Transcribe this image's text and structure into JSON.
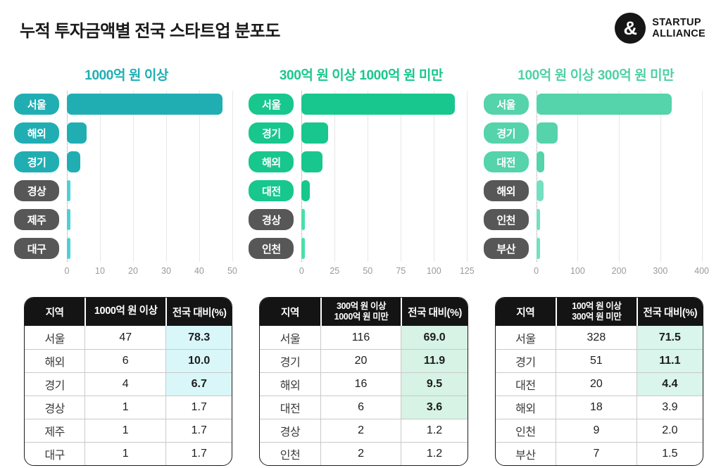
{
  "page": {
    "title": "누적 투자금액별 전국 스타트업 분포도"
  },
  "logo": {
    "symbol": "&",
    "line1": "STARTUP",
    "line2": "ALLIANCE"
  },
  "ui": {
    "gray_pill_color": "#575757",
    "gridline_color": "#e7e7e7",
    "tick_color": "#9a9a9a"
  },
  "chart_data": [
    {
      "type": "bar",
      "orientation": "horizontal",
      "title": "1000억 원 이상",
      "title_color": "#1cafb4",
      "bar_color": "#20aeb3",
      "bar_color_light": "#4fd0d4",
      "categories": [
        "서울",
        "해외",
        "경기",
        "경상",
        "제주",
        "대구"
      ],
      "values": [
        47,
        6,
        4,
        1,
        1,
        1
      ],
      "highlighted_categories": [
        "서울",
        "해외",
        "경기"
      ],
      "ticks": [
        0,
        10,
        20,
        30,
        40,
        50
      ],
      "xlim": [
        0,
        52
      ],
      "grid": true
    },
    {
      "type": "bar",
      "orientation": "horizontal",
      "title": "300억 원 이상 1000억 원 미만",
      "title_color": "#18c78d",
      "bar_color": "#18c78d",
      "bar_color_light": "#4adfa8",
      "categories": [
        "서울",
        "경기",
        "해외",
        "대전",
        "경상",
        "인천"
      ],
      "values": [
        116,
        20,
        16,
        6,
        2,
        2
      ],
      "highlighted_categories": [
        "서울",
        "경기",
        "해외",
        "대전"
      ],
      "ticks": [
        0,
        25,
        50,
        75,
        100,
        125
      ],
      "xlim": [
        0,
        130
      ],
      "grid": true
    },
    {
      "type": "bar",
      "orientation": "horizontal",
      "title": "100억 원 이상 300억 원 미만",
      "title_color": "#4fd0a6",
      "bar_color": "#55d3ab",
      "bar_color_light": "#74e0c0",
      "categories": [
        "서울",
        "경기",
        "대전",
        "해외",
        "인천",
        "부산"
      ],
      "values": [
        328,
        51,
        20,
        18,
        9,
        7
      ],
      "highlighted_categories": [
        "서울",
        "경기",
        "대전"
      ],
      "ticks": [
        0,
        100,
        200,
        300,
        400
      ],
      "xlim": [
        0,
        416
      ],
      "grid": true
    }
  ],
  "tables": [
    {
      "highlight_color": "#d9f7f9",
      "headers": {
        "region": "지역",
        "count_line1": "1000억 원 이상",
        "count_line2": "",
        "pct": "전국 대비(%)"
      },
      "rows": [
        {
          "region": "서울",
          "count": "47",
          "pct": "78.3",
          "highlighted": true
        },
        {
          "region": "해외",
          "count": "6",
          "pct": "10.0",
          "highlighted": true
        },
        {
          "region": "경기",
          "count": "4",
          "pct": "6.7",
          "highlighted": true
        },
        {
          "region": "경상",
          "count": "1",
          "pct": "1.7",
          "highlighted": false
        },
        {
          "region": "제주",
          "count": "1",
          "pct": "1.7",
          "highlighted": false
        },
        {
          "region": "대구",
          "count": "1",
          "pct": "1.7",
          "highlighted": false
        }
      ]
    },
    {
      "highlight_color": "#d6f3e6",
      "headers": {
        "region": "지역",
        "count_line1": "300억 원 이상",
        "count_line2": "1000억 원 미만",
        "pct": "전국 대비(%)"
      },
      "rows": [
        {
          "region": "서울",
          "count": "116",
          "pct": "69.0",
          "highlighted": true
        },
        {
          "region": "경기",
          "count": "20",
          "pct": "11.9",
          "highlighted": true
        },
        {
          "region": "해외",
          "count": "16",
          "pct": "9.5",
          "highlighted": true
        },
        {
          "region": "대전",
          "count": "6",
          "pct": "3.6",
          "highlighted": true
        },
        {
          "region": "경상",
          "count": "2",
          "pct": "1.2",
          "highlighted": false
        },
        {
          "region": "인천",
          "count": "2",
          "pct": "1.2",
          "highlighted": false
        }
      ]
    },
    {
      "highlight_color": "#d9f5ec",
      "headers": {
        "region": "지역",
        "count_line1": "100억 원 이상",
        "count_line2": "300억 원 미만",
        "pct": "전국 대비(%)"
      },
      "rows": [
        {
          "region": "서울",
          "count": "328",
          "pct": "71.5",
          "highlighted": true
        },
        {
          "region": "경기",
          "count": "51",
          "pct": "11.1",
          "highlighted": true
        },
        {
          "region": "대전",
          "count": "20",
          "pct": "4.4",
          "highlighted": true
        },
        {
          "region": "해외",
          "count": "18",
          "pct": "3.9",
          "highlighted": false
        },
        {
          "region": "인천",
          "count": "9",
          "pct": "2.0",
          "highlighted": false
        },
        {
          "region": "부산",
          "count": "7",
          "pct": "1.5",
          "highlighted": false
        }
      ]
    }
  ]
}
